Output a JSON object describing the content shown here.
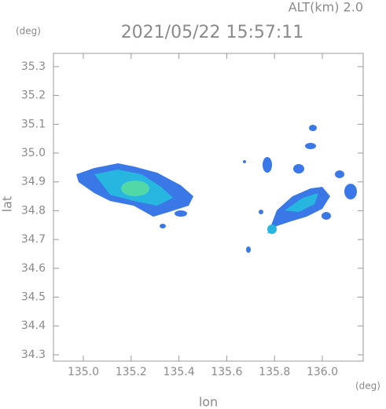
{
  "chart_data": {
    "type": "map",
    "title": "2021/05/22 15:57:11",
    "subtitle": "ALT(km) 2.0",
    "x_label": "lon",
    "y_label": "lat",
    "x_unit": "(deg)",
    "y_unit": "(deg)",
    "xlim": [
      134.875,
      136.171
    ],
    "ylim": [
      34.278,
      35.346
    ],
    "xticks": [
      {
        "value": 135,
        "label": "135.0"
      },
      135.2,
      135.4,
      135.6,
      135.8,
      {
        "value": 136,
        "label": "136.0"
      }
    ],
    "yticks": [
      34.3,
      34.4,
      34.5,
      34.6,
      34.7,
      34.8,
      34.9,
      {
        "value": 35,
        "label": "35.0"
      },
      35.1,
      35.2,
      35.3
    ],
    "color": "#999999"
  }
}
